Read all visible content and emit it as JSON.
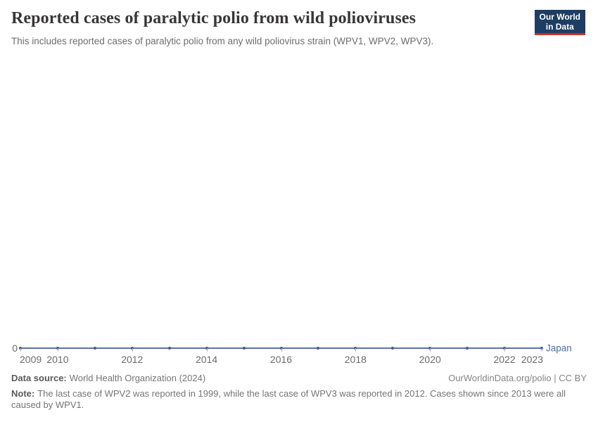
{
  "header": {
    "title": "Reported cases of paralytic polio from wild polioviruses",
    "subtitle": "This includes reported cases of paralytic polio from any wild poliovirus strain (WPV1, WPV2, WPV3)."
  },
  "logo": {
    "line1": "Our World",
    "line2": "in Data",
    "bg_color": "#1d3d63",
    "bar_color": "#cf2d24"
  },
  "chart_data": {
    "type": "line",
    "title": "Reported cases of paralytic polio from wild polioviruses",
    "xlabel": "",
    "ylabel": "",
    "x": [
      2009,
      2010,
      2011,
      2012,
      2013,
      2014,
      2015,
      2016,
      2017,
      2018,
      2019,
      2020,
      2021,
      2022,
      2023
    ],
    "series": [
      {
        "name": "Japan",
        "values": [
          0,
          0,
          0,
          0,
          0,
          0,
          0,
          0,
          0,
          0,
          0,
          0,
          0,
          0,
          0
        ],
        "color": "#4c6fa8"
      }
    ],
    "x_axis": {
      "labeled_ticks": [
        "2009",
        "2010",
        "2012",
        "2014",
        "2016",
        "2018",
        "2020",
        "2022",
        "2023"
      ]
    },
    "y_axis": {
      "ticks": [
        0
      ],
      "zero_label": "0"
    },
    "ylim": [
      0,
      0
    ],
    "grid": false,
    "legend_position": "end-of-line"
  },
  "colors": {
    "line": "#5674ab",
    "marker": "#3d5c94",
    "tick": "#aab7d0",
    "axis_label": "#6b6b6b",
    "entity_label": "#4c6fa8",
    "title": "#383636",
    "subtitle": "#6d6d6d"
  },
  "footer": {
    "data_source_label": "Data source:",
    "data_source_value": "World Health Organization (2024)",
    "rights": "OurWorldinData.org/polio | CC BY",
    "note_label": "Note:",
    "note_text": "The last case of WPV2 was reported in 1999, while the last case of WPV3 was reported in 2012. Cases shown since 2013 were all caused by WPV1."
  }
}
